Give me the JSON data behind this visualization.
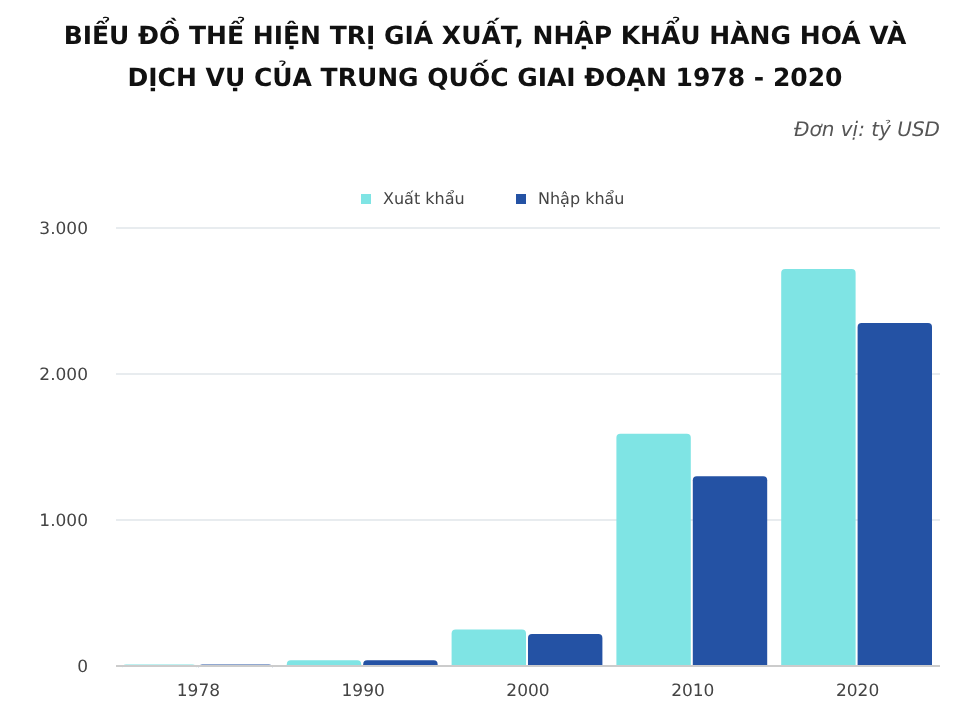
{
  "chart_data": {
    "type": "bar",
    "title": "BIỂU ĐỒ THỂ HIỆN TRỊ GIÁ XUẤT, NHẬP KHẨU HÀNG HOÁ VÀ DỊCH VỤ CỦA TRUNG QUỐC GIAI ĐOẠN 1978 - 2020",
    "subtitle": "Đơn vị: tỷ USD",
    "categories": [
      "1978",
      "1990",
      "2000",
      "2010",
      "2020"
    ],
    "series": [
      {
        "name": "Xuất khẩu",
        "color": "#7fe4e4",
        "values": [
          10,
          40,
          250,
          1590,
          2720
        ]
      },
      {
        "name": "Nhập khẩu",
        "color": "#2452a4",
        "values": [
          10,
          40,
          220,
          1300,
          2350
        ]
      }
    ],
    "ylim": [
      0,
      3000
    ],
    "yticks": [
      {
        "value": 0,
        "label": "0"
      },
      {
        "value": 1000,
        "label": "1.000"
      },
      {
        "value": 2000,
        "label": "2.000"
      },
      {
        "value": 3000,
        "label": "3.000"
      }
    ],
    "grid": "y",
    "legend": "top"
  }
}
